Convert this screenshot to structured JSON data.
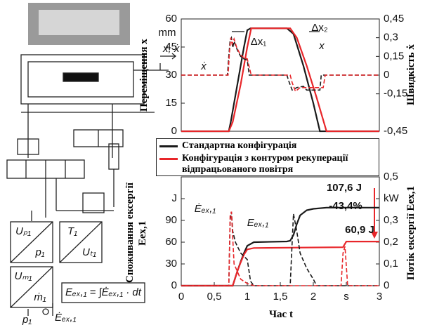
{
  "diagram": {
    "position_label": "x, ẋ",
    "boxes": [
      {
        "top": "Uₚ₁",
        "bottom": "p₁"
      },
      {
        "top": "T₁",
        "bottom": "Uₜ₁"
      },
      {
        "top": "Uₘ₁",
        "bottom": "ṁ₁"
      }
    ],
    "formula": "Eₑₓ,₁ = ∫Ėₑₓ,₁ · dt",
    "inputs": [
      "p₁",
      "Ėₑₓ,₁"
    ]
  },
  "chart_data": [
    {
      "type": "line",
      "ylabel": "Переміщення x",
      "y2label": "Швидкість ẋ",
      "xlim": [
        0,
        3
      ],
      "ylim": [
        0,
        60
      ],
      "yticks": [
        0,
        15,
        30,
        45,
        60
      ],
      "y2lim": [
        -0.45,
        0.45
      ],
      "y2ticks": [
        {
          "value": -0.45,
          "label": "-0,45"
        },
        {
          "value": -0.15,
          "label": "-0,15"
        },
        0,
        {
          "value": 0.15,
          "label": "0,15"
        },
        {
          "value": 0.3,
          "label": "0,3"
        },
        {
          "value": 0.45,
          "label": "0,45"
        }
      ],
      "grid": false,
      "annotations": [
        "mm",
        "Δx₁",
        "Δx₂",
        "x",
        "ẋ"
      ],
      "series": [
        {
          "name": "Стандартна конфігурація",
          "color": "#1a1a1a",
          "dash": false,
          "x": [
            0,
            0.72,
            0.75,
            0.85,
            0.95,
            1.0,
            1.05,
            1.6,
            1.7,
            1.85,
            2.0,
            2.1,
            3
          ],
          "values": [
            0,
            0,
            5,
            25,
            45,
            54,
            55,
            55,
            52,
            35,
            15,
            0,
            0
          ]
        },
        {
          "name": "Конфігурація з контуром рекуперації відпрацьованого повітря",
          "color": "#e8262a",
          "dash": false,
          "x": [
            0,
            0.72,
            0.78,
            0.9,
            1.0,
            1.06,
            1.65,
            1.75,
            1.9,
            2.05,
            2.2,
            3
          ],
          "values": [
            0,
            0,
            5,
            25,
            45,
            55,
            55,
            50,
            35,
            18,
            0,
            0
          ]
        },
        {
          "color": "#1a1a1a",
          "dash": true,
          "axis": "y2",
          "x": [
            0,
            0.7,
            0.72,
            0.74,
            0.76,
            0.78,
            0.8,
            0.85,
            0.9,
            0.95,
            1.0,
            1.03,
            1.6,
            1.63,
            1.68,
            1.75,
            1.85,
            1.9,
            2.1,
            2.12,
            3
          ],
          "values": [
            0,
            0,
            0.15,
            0.28,
            0.3,
            0.22,
            0.27,
            0.2,
            0.15,
            0.13,
            0.12,
            0,
            0,
            -0.05,
            -0.12,
            -0.1,
            -0.09,
            -0.12,
            -0.12,
            0,
            0
          ]
        },
        {
          "color": "#e8262a",
          "dash": true,
          "axis": "y2",
          "x": [
            0,
            0.71,
            0.73,
            0.75,
            0.77,
            0.8,
            0.84,
            0.9,
            0.95,
            1.0,
            1.06,
            1.65,
            1.68,
            1.73,
            1.8,
            1.9,
            2.15,
            2.18,
            3
          ],
          "values": [
            0,
            0,
            0.18,
            0.3,
            0.25,
            0.29,
            0.22,
            0.16,
            0.14,
            0.13,
            0,
            0,
            -0.06,
            -0.13,
            -0.1,
            -0.1,
            -0.1,
            0,
            0
          ]
        }
      ]
    },
    {
      "type": "line",
      "ylabel": "Споживання ексергії Eex,1",
      "y2label": "Потік ексергії Eex,1",
      "xlabel": "Час t",
      "xlim": [
        0,
        3
      ],
      "xticks": [
        0,
        {
          "value": 0.5,
          "label": "0,5"
        },
        1,
        {
          "value": 1.5,
          "label": "1,5"
        },
        2,
        {
          "value": 2.5,
          "label": "s"
        },
        3
      ],
      "ylim": [
        0,
        150
      ],
      "yticks": [
        0,
        30,
        60,
        90,
        {
          "value": 120,
          "label": "J"
        }
      ],
      "y2lim": [
        0,
        0.5
      ],
      "y2ticks": [
        0,
        {
          "value": 0.1,
          "label": "0,1"
        },
        {
          "value": 0.2,
          "label": "0,2"
        },
        {
          "value": 0.3,
          "label": "0,3"
        },
        {
          "value": 0.4,
          "label": "kW"
        },
        {
          "value": 0.5,
          "label": "0,5"
        }
      ],
      "grid": false,
      "annotations": [
        "Ėₑₓ,₁",
        "Eₑₓ,₁",
        "107,6 J",
        "-43,4%",
        "60,9 J"
      ],
      "series": [
        {
          "color": "#1a1a1a",
          "dash": false,
          "x": [
            0,
            0.78,
            0.85,
            0.9,
            0.95,
            1.0,
            1.1,
            1.6,
            1.65,
            1.7,
            1.75,
            1.8,
            1.9,
            2.0,
            2.2,
            3
          ],
          "values": [
            0,
            0,
            20,
            33,
            45,
            55,
            60,
            61,
            62,
            70,
            85,
            97,
            104,
            106,
            107.6,
            107.6
          ]
        },
        {
          "color": "#e8262a",
          "dash": false,
          "x": [
            0,
            0.78,
            0.85,
            0.9,
            0.95,
            1.0,
            1.1,
            2.45,
            2.5,
            3
          ],
          "values": [
            0,
            0,
            20,
            32,
            43,
            50,
            52,
            53,
            60.9,
            60.9
          ]
        },
        {
          "color": "#1a1a1a",
          "dash": true,
          "axis": "y2",
          "x": [
            0,
            0.72,
            0.74,
            0.76,
            0.78,
            0.82,
            0.9,
            1.0,
            1.05,
            1.1,
            1.65,
            1.68,
            1.7,
            1.75,
            1.8,
            1.9,
            2.0,
            2.05,
            3
          ],
          "values": [
            0,
            0,
            0.3,
            0.34,
            0.25,
            0.2,
            0.15,
            0.12,
            0.02,
            0,
            0,
            0.2,
            0.33,
            0.25,
            0.15,
            0.08,
            0.03,
            0,
            0
          ]
        },
        {
          "color": "#e8262a",
          "dash": true,
          "axis": "y2",
          "x": [
            0,
            0.72,
            0.74,
            0.76,
            0.8,
            0.9,
            1.0,
            1.1,
            2.42,
            2.45,
            2.48,
            2.52,
            3
          ],
          "values": [
            0,
            0,
            0.32,
            0.34,
            0.1,
            0.03,
            0.01,
            0,
            0,
            0.15,
            0.18,
            0,
            0
          ]
        }
      ]
    }
  ]
}
